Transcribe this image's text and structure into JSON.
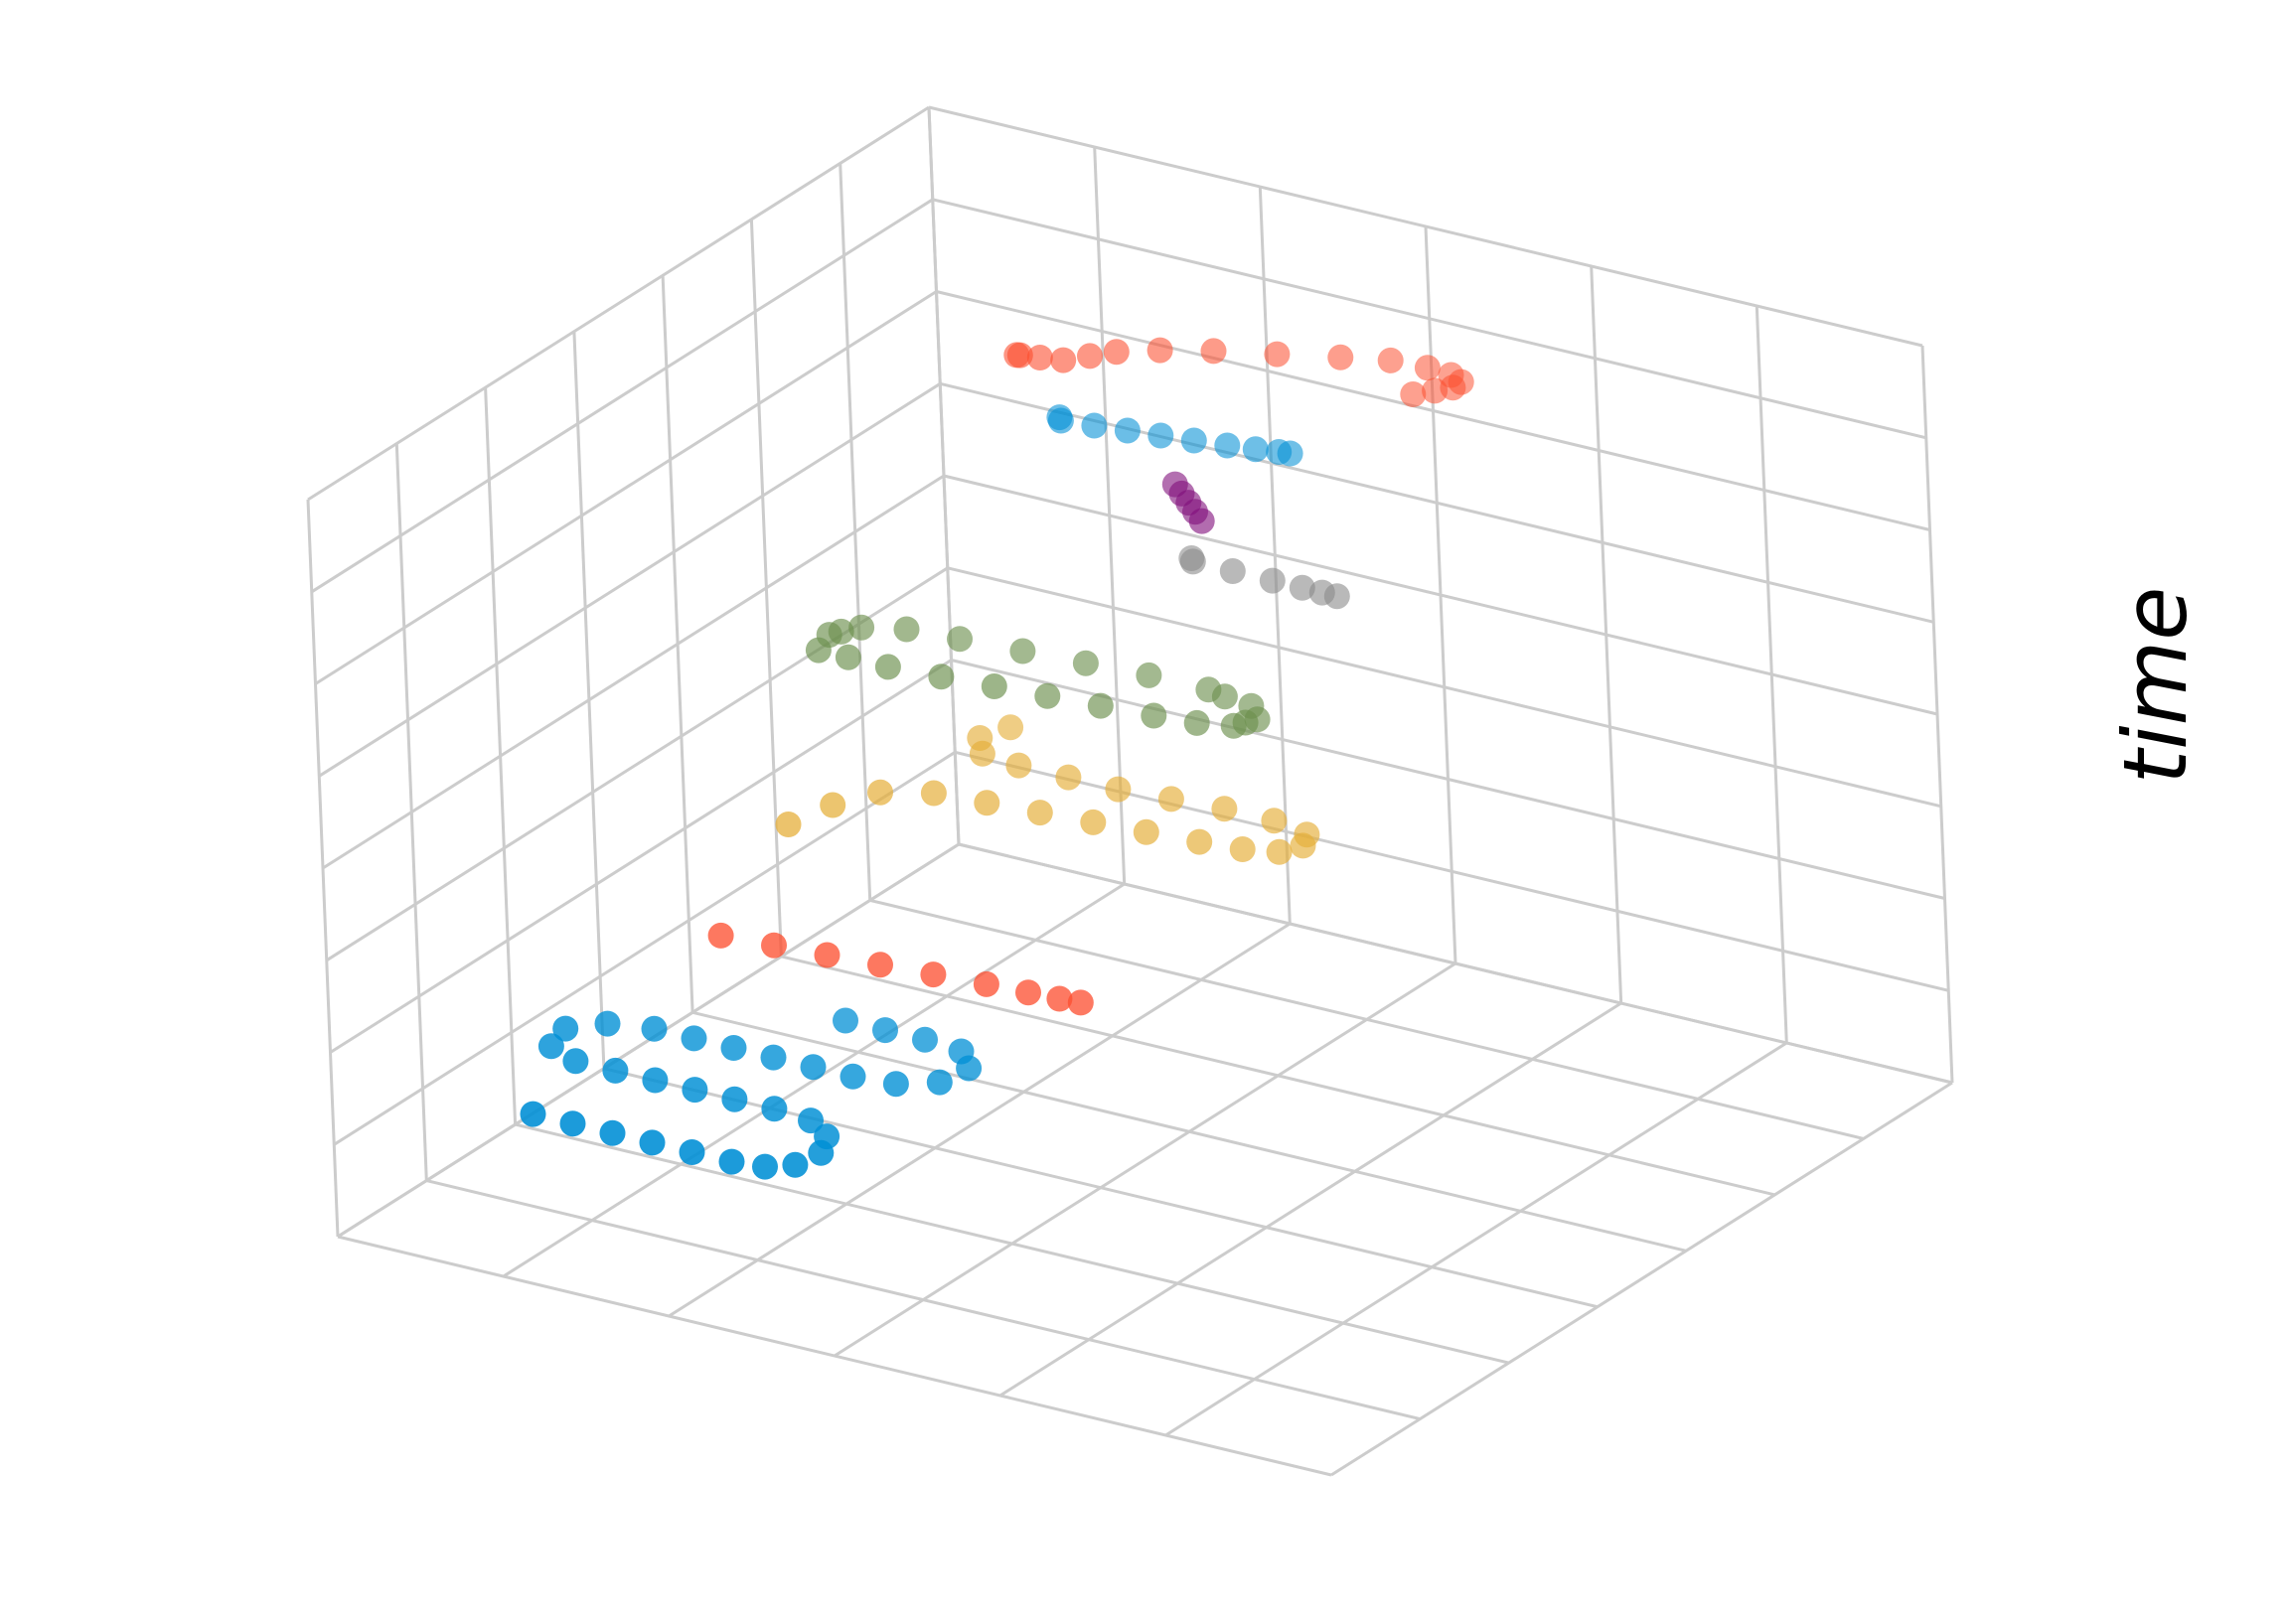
{
  "chart_data": {
    "type": "scatter",
    "dimensions": 3,
    "title": "",
    "xlabel": "",
    "ylabel": "",
    "zlabel": "time",
    "grid": true,
    "legend": "none",
    "tick_labels_shown": false,
    "xlim": [
      0,
      10
    ],
    "ylim": [
      0,
      9
    ],
    "zlim": [
      0,
      8
    ],
    "colors": {
      "grid": "#cccccc",
      "axis_line": "#b5b5b5"
    },
    "series": [
      {
        "color": "#008fd5",
        "points": [
          [
            1.1,
            1.3,
            1.0
          ],
          [
            1.5,
            1.3,
            1.0
          ],
          [
            1.9,
            1.3,
            1.0
          ],
          [
            2.3,
            1.3,
            1.0
          ],
          [
            2.7,
            1.3,
            1.0
          ],
          [
            3.1,
            1.3,
            1.0
          ],
          [
            3.4,
            1.35,
            1.0
          ],
          [
            3.6,
            1.5,
            1.0
          ],
          [
            3.65,
            1.8,
            1.0
          ],
          [
            3.5,
            2.1,
            1.0
          ],
          [
            3.2,
            2.3,
            1.0
          ],
          [
            2.8,
            2.35,
            1.0
          ],
          [
            2.4,
            2.35,
            1.0
          ],
          [
            2.0,
            2.35,
            1.0
          ],
          [
            1.6,
            2.35,
            1.0
          ],
          [
            1.2,
            2.35,
            1.0
          ],
          [
            0.8,
            2.35,
            1.0
          ],
          [
            0.45,
            2.5,
            1.0
          ],
          [
            0.35,
            2.85,
            1.0
          ],
          [
            0.6,
            3.1,
            1.0
          ],
          [
            1.0,
            3.2,
            1.0
          ],
          [
            1.4,
            3.2,
            1.0
          ],
          [
            1.8,
            3.2,
            1.0
          ],
          [
            2.2,
            3.2,
            1.0
          ],
          [
            2.6,
            3.2,
            1.0
          ],
          [
            3.0,
            3.2,
            1.0
          ],
          [
            3.4,
            3.25,
            1.0
          ],
          [
            3.7,
            3.45,
            1.0
          ],
          [
            3.75,
            3.8,
            1.0
          ],
          [
            3.5,
            4.05,
            1.0
          ],
          [
            3.1,
            4.1,
            1.0
          ],
          [
            2.7,
            4.1,
            1.0
          ],
          [
            2.3,
            4.1,
            1.0
          ]
        ]
      },
      {
        "color": "#fc4f30",
        "points": [
          [
            1.5,
            3.5,
            2.0
          ],
          [
            2.0,
            3.55,
            2.0
          ],
          [
            2.5,
            3.6,
            2.0
          ],
          [
            3.0,
            3.65,
            2.0
          ],
          [
            3.5,
            3.7,
            2.0
          ],
          [
            4.0,
            3.75,
            2.0
          ],
          [
            4.4,
            3.78,
            2.0
          ],
          [
            4.7,
            3.8,
            2.0
          ],
          [
            4.9,
            3.82,
            2.0
          ]
        ]
      },
      {
        "color": "#e5ae38",
        "points": [
          [
            1.8,
            4.1,
            3.0
          ],
          [
            1.9,
            4.6,
            3.0
          ],
          [
            2.1,
            5.0,
            3.0
          ],
          [
            2.5,
            5.2,
            3.0
          ],
          [
            3.0,
            5.25,
            3.0
          ],
          [
            3.5,
            5.3,
            3.0
          ],
          [
            4.0,
            5.35,
            3.0
          ],
          [
            4.5,
            5.4,
            3.0
          ],
          [
            5.0,
            5.45,
            3.0
          ],
          [
            5.4,
            5.5,
            3.0
          ],
          [
            5.7,
            5.6,
            3.0
          ],
          [
            5.8,
            5.8,
            3.0
          ],
          [
            5.7,
            6.0,
            3.0
          ],
          [
            5.3,
            6.1,
            3.0
          ],
          [
            4.8,
            6.1,
            3.0
          ],
          [
            4.3,
            6.05,
            3.0
          ],
          [
            3.8,
            6.0,
            3.0
          ],
          [
            3.3,
            6.0,
            3.0
          ],
          [
            2.8,
            6.0,
            3.0
          ],
          [
            2.4,
            6.05,
            3.0
          ],
          [
            2.2,
            6.3,
            3.0
          ],
          [
            2.3,
            6.6,
            3.0
          ]
        ]
      },
      {
        "color": "#6d904f",
        "points": [
          [
            1.1,
            5.6,
            4.0
          ],
          [
            1.4,
            5.6,
            4.0
          ],
          [
            1.8,
            5.6,
            4.0
          ],
          [
            2.3,
            5.65,
            4.0
          ],
          [
            2.8,
            5.7,
            4.0
          ],
          [
            3.3,
            5.75,
            4.0
          ],
          [
            3.8,
            5.8,
            4.0
          ],
          [
            4.3,
            5.85,
            4.0
          ],
          [
            4.7,
            5.9,
            4.0
          ],
          [
            5.0,
            6.0,
            4.0
          ],
          [
            5.1,
            6.2,
            4.0
          ],
          [
            4.9,
            6.4,
            4.0
          ],
          [
            4.4,
            6.5,
            4.0
          ],
          [
            3.8,
            6.5,
            4.0
          ],
          [
            3.2,
            6.45,
            4.0
          ],
          [
            2.6,
            6.4,
            4.0
          ],
          [
            2.0,
            6.35,
            4.0
          ],
          [
            1.5,
            6.3,
            4.0
          ],
          [
            1.15,
            6.15,
            4.0
          ],
          [
            1.0,
            5.9,
            4.0
          ],
          [
            5.05,
            6.1,
            4.0
          ],
          [
            4.6,
            6.45,
            4.0
          ],
          [
            1.05,
            6.0,
            4.0
          ]
        ]
      },
      {
        "color": "#8b8b8b",
        "points": [
          [
            3.9,
            7.05,
            5.0
          ],
          [
            4.3,
            7.05,
            5.0
          ],
          [
            4.7,
            7.05,
            5.0
          ],
          [
            5.0,
            7.05,
            5.0
          ],
          [
            5.2,
            7.05,
            5.0
          ],
          [
            5.35,
            7.05,
            5.0
          ],
          [
            3.85,
            7.1,
            5.0
          ]
        ]
      },
      {
        "color": "#810f7c",
        "points": [
          [
            3.75,
            7.05,
            5.8
          ],
          [
            3.85,
            7.0,
            5.75
          ],
          [
            3.95,
            6.95,
            5.7
          ],
          [
            4.05,
            6.9,
            5.65
          ],
          [
            4.15,
            6.85,
            5.6
          ]
        ]
      },
      {
        "color": "#008fd5",
        "points": [
          [
            2.4,
            7.35,
            6.0
          ],
          [
            2.7,
            7.4,
            6.0
          ],
          [
            3.0,
            7.45,
            6.0
          ],
          [
            3.3,
            7.5,
            6.0
          ],
          [
            3.6,
            7.55,
            6.0
          ],
          [
            3.9,
            7.6,
            6.0
          ],
          [
            4.15,
            7.65,
            6.0
          ],
          [
            4.35,
            7.7,
            6.0
          ],
          [
            4.45,
            7.72,
            6.0
          ],
          [
            2.35,
            7.4,
            6.0
          ]
        ]
      },
      {
        "color": "#fc4f30",
        "points": [
          [
            2.3,
            6.9,
            6.9
          ],
          [
            2.5,
            6.95,
            6.9
          ],
          [
            2.7,
            7.0,
            6.9
          ],
          [
            2.9,
            7.1,
            6.95
          ],
          [
            3.1,
            7.2,
            7.0
          ],
          [
            3.4,
            7.4,
            7.0
          ],
          [
            3.8,
            7.6,
            7.0
          ],
          [
            4.3,
            7.8,
            7.0
          ],
          [
            4.8,
            8.0,
            7.0
          ],
          [
            5.2,
            8.15,
            7.0
          ],
          [
            5.5,
            8.25,
            6.95
          ],
          [
            5.7,
            8.3,
            6.9
          ],
          [
            5.8,
            8.3,
            6.85
          ],
          [
            5.75,
            8.25,
            6.8
          ],
          [
            5.6,
            8.2,
            6.75
          ],
          [
            5.45,
            8.1,
            6.72
          ],
          [
            2.35,
            6.88,
            6.92
          ]
        ]
      }
    ]
  }
}
